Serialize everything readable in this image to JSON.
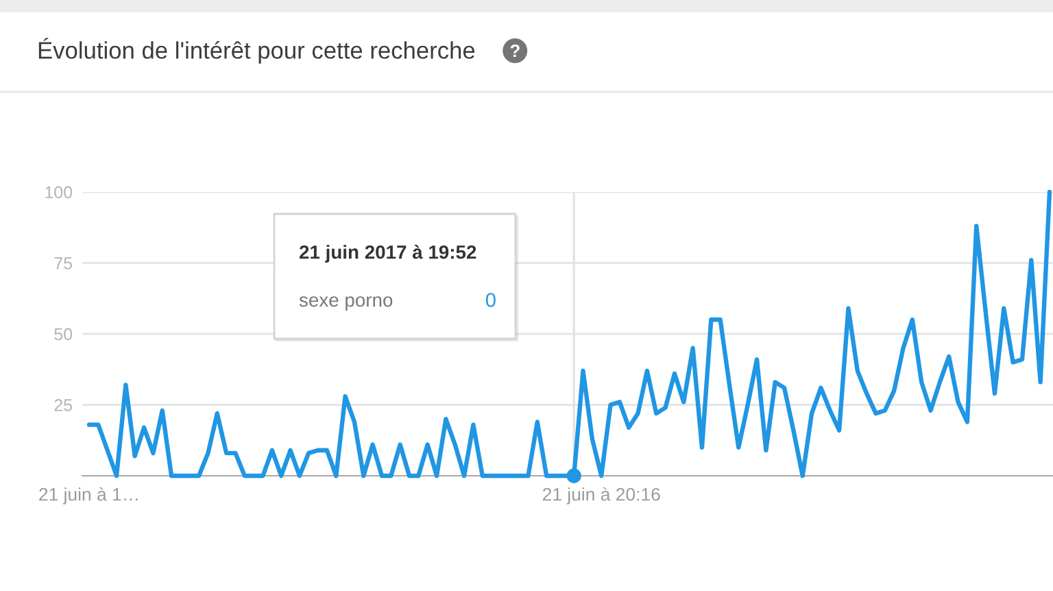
{
  "chart_data": {
    "type": "line",
    "title": "Évolution de l'intérêt pour cette recherche",
    "x": [
      "2017-06-21T12:48",
      "2017-06-21T12:56",
      "2017-06-21T13:04",
      "2017-06-21T13:12",
      "2017-06-21T13:20",
      "2017-06-21T13:28",
      "2017-06-21T13:36",
      "2017-06-21T13:44",
      "2017-06-21T13:52",
      "2017-06-21T14:00",
      "2017-06-21T14:08",
      "2017-06-21T14:16",
      "2017-06-21T14:24",
      "2017-06-21T14:32",
      "2017-06-21T14:40",
      "2017-06-21T14:48",
      "2017-06-21T14:56",
      "2017-06-21T15:04",
      "2017-06-21T15:12",
      "2017-06-21T15:20",
      "2017-06-21T15:28",
      "2017-06-21T15:36",
      "2017-06-21T15:44",
      "2017-06-21T15:52",
      "2017-06-21T16:00",
      "2017-06-21T16:08",
      "2017-06-21T16:16",
      "2017-06-21T16:24",
      "2017-06-21T16:32",
      "2017-06-21T16:40",
      "2017-06-21T16:48",
      "2017-06-21T16:56",
      "2017-06-21T17:04",
      "2017-06-21T17:12",
      "2017-06-21T17:20",
      "2017-06-21T17:28",
      "2017-06-21T17:36",
      "2017-06-21T17:44",
      "2017-06-21T17:52",
      "2017-06-21T18:00",
      "2017-06-21T18:08",
      "2017-06-21T18:16",
      "2017-06-21T18:24",
      "2017-06-21T18:32",
      "2017-06-21T18:40",
      "2017-06-21T18:48",
      "2017-06-21T18:56",
      "2017-06-21T19:04",
      "2017-06-21T19:12",
      "2017-06-21T19:20",
      "2017-06-21T19:28",
      "2017-06-21T19:36",
      "2017-06-21T19:44",
      "2017-06-21T19:52",
      "2017-06-21T20:00",
      "2017-06-21T20:08",
      "2017-06-21T20:16",
      "2017-06-21T20:24",
      "2017-06-21T20:32",
      "2017-06-21T20:40",
      "2017-06-21T20:48",
      "2017-06-21T20:56",
      "2017-06-21T21:04",
      "2017-06-21T21:12",
      "2017-06-21T21:20",
      "2017-06-21T21:28",
      "2017-06-21T21:36",
      "2017-06-21T21:44",
      "2017-06-21T21:52",
      "2017-06-21T22:00",
      "2017-06-21T22:08",
      "2017-06-21T22:16",
      "2017-06-21T22:24",
      "2017-06-21T22:32",
      "2017-06-21T22:40",
      "2017-06-21T22:48",
      "2017-06-21T22:56",
      "2017-06-21T23:04",
      "2017-06-21T23:12",
      "2017-06-21T23:20",
      "2017-06-21T23:28",
      "2017-06-21T23:36",
      "2017-06-21T23:44",
      "2017-06-21T23:52",
      "2017-06-22T00:00",
      "2017-06-22T00:08",
      "2017-06-22T00:16",
      "2017-06-22T00:24",
      "2017-06-22T00:32",
      "2017-06-22T00:40",
      "2017-06-22T00:48",
      "2017-06-22T00:56",
      "2017-06-22T01:04",
      "2017-06-22T01:12",
      "2017-06-22T01:20",
      "2017-06-22T01:28",
      "2017-06-22T01:36",
      "2017-06-22T01:44",
      "2017-06-22T01:52",
      "2017-06-22T02:00",
      "2017-06-22T02:08",
      "2017-06-22T02:16",
      "2017-06-22T02:24",
      "2017-06-22T02:32",
      "2017-06-22T02:40",
      "2017-06-22T02:48"
    ],
    "series": [
      {
        "color": "#2196e3",
        "values": [
          18,
          18,
          9,
          0,
          32,
          7,
          17,
          8,
          23,
          0,
          0,
          0,
          0,
          8,
          22,
          8,
          8,
          0,
          0,
          0,
          9,
          0,
          9,
          0,
          8,
          9,
          9,
          0,
          28,
          19,
          0,
          11,
          0,
          0,
          11,
          0,
          0,
          11,
          0,
          20,
          11,
          0,
          18,
          0,
          0,
          0,
          0,
          0,
          0,
          19,
          0,
          0,
          0,
          0,
          37,
          13,
          0,
          25,
          26,
          17,
          22,
          37,
          22,
          24,
          36,
          26,
          45,
          10,
          55,
          55,
          32,
          10,
          25,
          41,
          9,
          33,
          31,
          16,
          0,
          22,
          31,
          23,
          16,
          59,
          37,
          29,
          22,
          23,
          30,
          45,
          55,
          33,
          23,
          33,
          42,
          26,
          19,
          88,
          58,
          29,
          59,
          40,
          41,
          76,
          33,
          100
        ]
      },
      {
        "type": "scatter",
        "color": "#2196e3",
        "marker": "circle",
        "x": [
          "2017-06-21T19:52"
        ],
        "values": [
          0
        ]
      }
    ],
    "xlim": [
      "2017-06-21T12:42",
      "2017-06-22T02:51"
    ],
    "xticks": [
      {
        "value": "2017-06-21T12:48",
        "label": "21 juin à 1…"
      },
      {
        "value": "2017-06-21T20:16",
        "label": "21 juin à 20:16"
      }
    ],
    "ylim": [
      0,
      100
    ],
    "yticks": [
      25,
      50,
      75,
      100
    ],
    "grid": "y",
    "ref_lines": [
      {
        "axis": "x",
        "value": "2017-06-21T19:52",
        "color": "#e3e3e3"
      }
    ],
    "annotations": [
      "21 juin 2017 à 19:52",
      "sexe porno",
      "0"
    ]
  }
}
